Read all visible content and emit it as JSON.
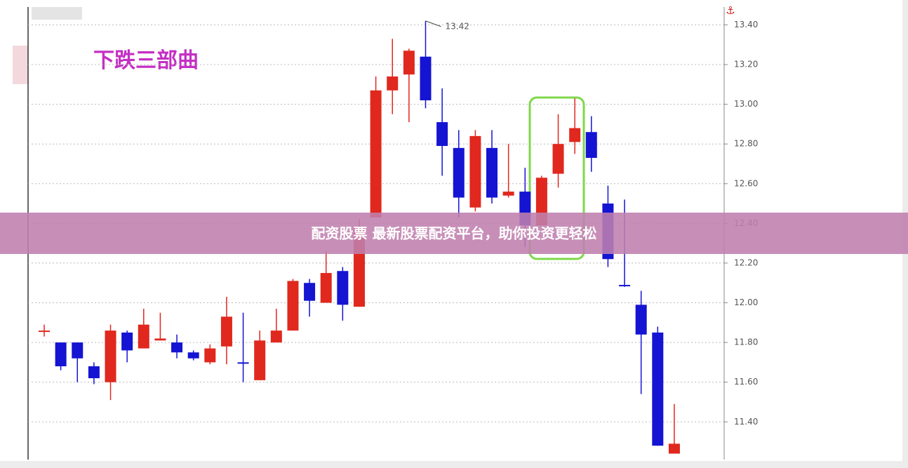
{
  "chart_data": {
    "type": "candlestick",
    "title": "下跌三部曲",
    "annotation": "13.42",
    "ylim": [
      11.21,
      13.49
    ],
    "yticks": [
      {
        "value": 11.4,
        "label": "11.40"
      },
      {
        "value": 11.6,
        "label": "11.60"
      },
      {
        "value": 11.8,
        "label": "11.80"
      },
      {
        "value": 12.0,
        "label": "12.00"
      },
      {
        "value": 12.2,
        "label": "12.20"
      },
      {
        "value": 12.4,
        "label": "12.40"
      },
      {
        "value": 12.6,
        "label": "12.60"
      },
      {
        "value": 12.8,
        "label": "12.80"
      },
      {
        "value": 13.0,
        "label": "13.00"
      },
      {
        "value": 13.2,
        "label": "13.20"
      },
      {
        "value": 13.4,
        "label": "13.40"
      }
    ],
    "grid": true,
    "up_color": "#e0281e",
    "down_color": "#1414d2",
    "open": [
      11.86,
      11.8,
      11.8,
      11.68,
      11.6,
      11.85,
      11.77,
      11.81,
      11.8,
      11.75,
      11.7,
      11.78,
      11.7,
      11.61,
      11.8,
      11.86,
      12.1,
      12.0,
      12.16,
      11.98,
      12.43,
      13.07,
      13.15,
      13.24,
      12.91,
      12.78,
      12.48,
      12.78,
      12.54,
      12.56,
      12.39,
      12.65,
      12.81,
      12.86,
      12.5,
      12.09,
      11.99,
      11.85,
      11.24
    ],
    "high": [
      11.89,
      11.8,
      11.8,
      11.7,
      11.89,
      11.86,
      11.97,
      11.95,
      11.84,
      11.76,
      11.79,
      12.03,
      11.95,
      11.86,
      11.97,
      12.12,
      12.12,
      12.26,
      12.18,
      12.42,
      13.14,
      13.33,
      13.28,
      13.42,
      13.08,
      12.87,
      12.87,
      12.87,
      12.8,
      12.68,
      12.64,
      12.95,
      13.03,
      12.94,
      12.59,
      12.52,
      12.06,
      11.88,
      11.49
    ],
    "low": [
      11.83,
      11.66,
      11.6,
      11.59,
      11.51,
      11.7,
      11.77,
      11.81,
      11.72,
      11.71,
      11.69,
      11.69,
      11.6,
      11.61,
      11.8,
      11.86,
      11.93,
      12.0,
      11.91,
      11.98,
      12.43,
      12.95,
      12.91,
      12.98,
      12.64,
      12.43,
      12.46,
      12.5,
      12.53,
      12.28,
      12.39,
      12.58,
      12.75,
      12.66,
      12.18,
      12.08,
      11.54,
      11.28,
      11.24
    ],
    "close": [
      11.86,
      11.68,
      11.72,
      11.62,
      11.86,
      11.76,
      11.89,
      11.82,
      11.75,
      11.72,
      11.77,
      11.93,
      11.7,
      11.81,
      11.86,
      12.11,
      12.01,
      12.15,
      11.99,
      12.38,
      13.07,
      13.14,
      13.27,
      13.02,
      12.79,
      12.53,
      12.84,
      12.53,
      12.56,
      12.39,
      12.63,
      12.8,
      12.88,
      12.73,
      12.22,
      12.09,
      11.84,
      11.28,
      11.29
    ]
  },
  "banner": "配资股票 最新股票配资平台，助你投资更轻松"
}
